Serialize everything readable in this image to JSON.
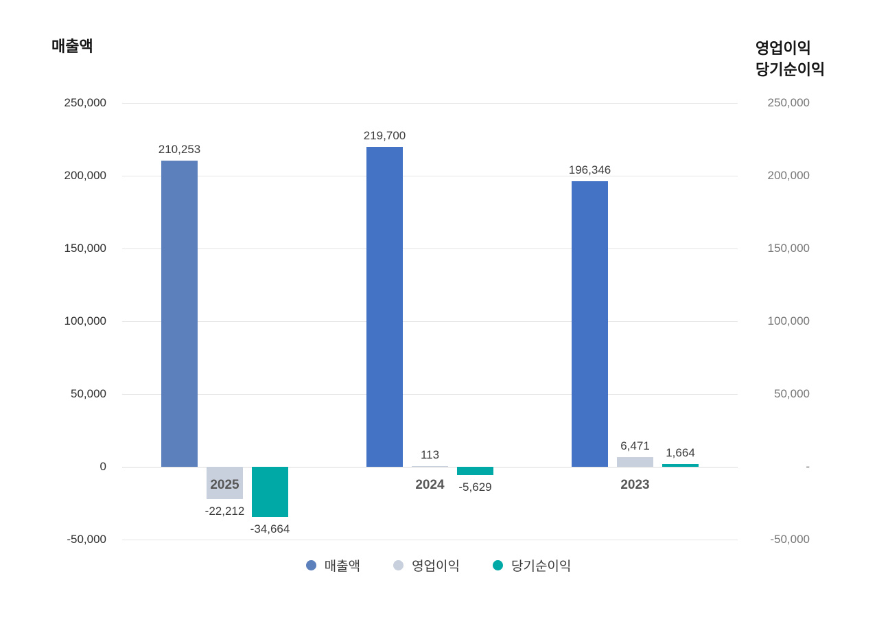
{
  "left_axis": {
    "title": "매출액",
    "ticks": [
      "250,000",
      "200,000",
      "150,000",
      "100,000",
      "50,000",
      "0",
      "-50,000"
    ]
  },
  "right_axis": {
    "title_lines": [
      "영업이익",
      "당기순이익"
    ],
    "ticks": [
      "250,000",
      "200,000",
      "150,000",
      "100,000",
      "50,000",
      "-",
      "-50,000"
    ]
  },
  "chart_data": {
    "type": "bar",
    "categories": [
      "2025",
      "2024",
      "2023"
    ],
    "series": [
      {
        "key": "revenue",
        "name": "매출액",
        "axis": "left",
        "values": [
          210253,
          219700,
          196346
        ],
        "labels": [
          "210,253",
          "219,700",
          "196,346"
        ],
        "color": "#5b80bb",
        "bar_colors": [
          "#5b80bb",
          "#4472c4",
          "#4472c4"
        ]
      },
      {
        "key": "operating-profit",
        "name": "영업이익",
        "axis": "right",
        "values": [
          -22212,
          113,
          6471
        ],
        "labels": [
          "-22,212",
          "113",
          "6,471"
        ],
        "color": "#c8d0dd"
      },
      {
        "key": "net-income",
        "name": "당기순이익",
        "axis": "right",
        "values": [
          -34664,
          -5629,
          1664
        ],
        "labels": [
          "-34,664",
          "-5,629",
          "1,664"
        ],
        "color": "#00a9a6"
      }
    ],
    "ylim": [
      -50000,
      250000
    ],
    "ytick_step": 50000,
    "grid": true,
    "legend_position": "bottom"
  },
  "legend": {
    "items": [
      {
        "key": "revenue",
        "label": "매출액",
        "color": "#5b80bb"
      },
      {
        "key": "operating-profit",
        "label": "영업이익",
        "color": "#c8d0dd"
      },
      {
        "key": "net-income",
        "label": "당기순이익",
        "color": "#00a9a6"
      }
    ]
  }
}
